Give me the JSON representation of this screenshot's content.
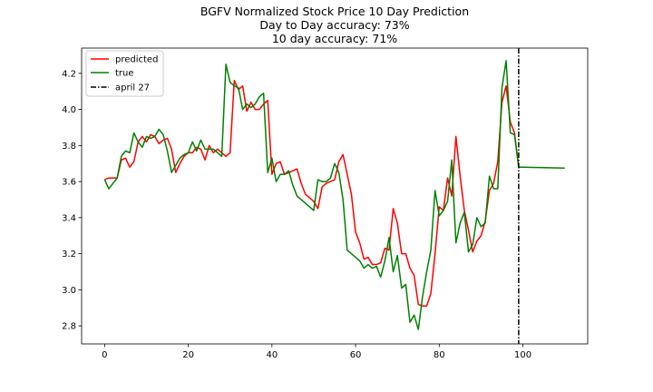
{
  "chart_data": {
    "type": "line",
    "title": "BGFV Normalized Stock Price 10 Day Prediction",
    "subtitle_lines": [
      "Day to Day accuracy: 73%",
      "10 day accuracy: 71%"
    ],
    "xlabel": "",
    "ylabel": "",
    "xlim": [
      -5.5,
      115.5
    ],
    "ylim": [
      2.7,
      4.34
    ],
    "xticks": [
      0,
      20,
      40,
      60,
      80,
      100
    ],
    "yticks": [
      2.8,
      3.0,
      3.2,
      3.4,
      3.6,
      3.8,
      4.0,
      4.2
    ],
    "ytick_labels": [
      "2.8",
      "3.0",
      "3.2",
      "3.4",
      "3.6",
      "3.8",
      "4.0",
      "4.2"
    ],
    "grid": false,
    "legend_position": "top-left",
    "series": [
      {
        "name": "predicted",
        "color": "#ff0000",
        "values": [
          3.61,
          3.62,
          3.62,
          3.62,
          3.72,
          3.73,
          3.68,
          3.71,
          3.82,
          3.85,
          3.82,
          3.86,
          3.85,
          3.81,
          3.83,
          3.84,
          3.78,
          3.65,
          3.7,
          3.74,
          3.76,
          3.76,
          3.79,
          3.78,
          3.72,
          3.8,
          3.76,
          3.78,
          3.76,
          3.74,
          3.76,
          4.16,
          4.11,
          4.13,
          3.99,
          4.04,
          4.0,
          4.0,
          4.03,
          4.05,
          3.64,
          3.7,
          3.71,
          3.64,
          3.65,
          3.66,
          3.67,
          3.59,
          3.53,
          3.51,
          3.49,
          3.45,
          3.57,
          3.59,
          3.6,
          3.61,
          3.71,
          3.75,
          3.64,
          3.53,
          3.32,
          3.26,
          3.17,
          3.18,
          3.14,
          3.14,
          3.15,
          3.23,
          3.22,
          3.45,
          3.37,
          3.2,
          3.2,
          3.12,
          3.08,
          2.92,
          2.91,
          2.91,
          2.98,
          3.2,
          3.46,
          3.44,
          3.62,
          3.52,
          3.85,
          3.63,
          3.44,
          3.33,
          3.21,
          3.27,
          3.3,
          3.38,
          3.55,
          3.59,
          3.71,
          4.04,
          4.13,
          3.93,
          3.87,
          3.68
        ],
        "start_x": 0
      },
      {
        "name": "true",
        "color": "#008000",
        "values": [
          3.61,
          3.56,
          3.59,
          3.62,
          3.74,
          3.77,
          3.76,
          3.87,
          3.82,
          3.79,
          3.85,
          3.84,
          3.85,
          3.89,
          3.86,
          3.77,
          3.65,
          3.69,
          3.73,
          3.75,
          3.76,
          3.82,
          3.77,
          3.83,
          3.78,
          3.78,
          3.78,
          3.76,
          3.74,
          4.25,
          4.15,
          4.13,
          4.12,
          4.0,
          4.03,
          4.01,
          4.03,
          4.07,
          4.09,
          3.65,
          3.73,
          3.6,
          3.64,
          3.64,
          3.66,
          3.58,
          3.52,
          3.5,
          3.48,
          3.46,
          3.44,
          3.61,
          3.6,
          3.6,
          3.62,
          3.7,
          3.65,
          3.5,
          3.22,
          3.2,
          3.18,
          3.16,
          3.12,
          3.14,
          3.12,
          3.13,
          3.07,
          3.16,
          3.29,
          3.1,
          3.19,
          3.01,
          3.03,
          2.82,
          2.86,
          2.78,
          2.96,
          3.1,
          3.22,
          3.55,
          3.41,
          3.44,
          3.49,
          3.72,
          3.26,
          3.37,
          3.43,
          3.21,
          3.25,
          3.4,
          3.35,
          3.37,
          3.63,
          3.56,
          3.56,
          4.12,
          4.27,
          3.87,
          3.86,
          3.68
        ],
        "start_x": 0
      }
    ],
    "forecast": {
      "series_name": "predicted",
      "color": "#008000",
      "x": [
        99,
        100,
        110
      ],
      "values": [
        3.68,
        3.68,
        3.675
      ]
    },
    "vline": {
      "name": "april 27",
      "x": 99,
      "color": "#000000",
      "style": "dash-dot"
    }
  }
}
